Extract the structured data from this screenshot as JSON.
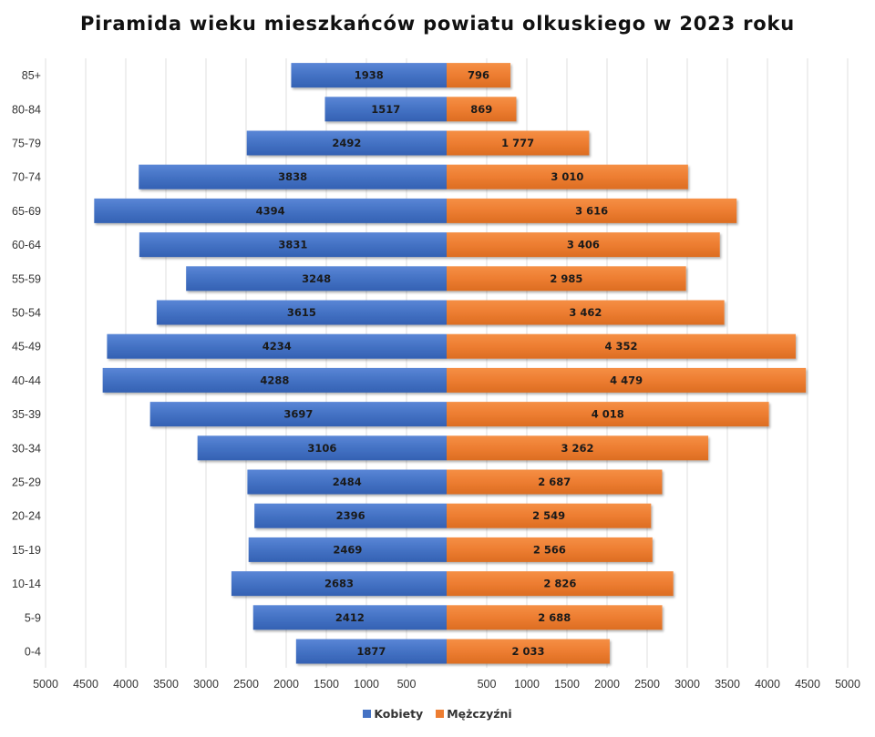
{
  "chart_data": {
    "type": "bar",
    "orientation": "horizontal",
    "layout": "population-pyramid",
    "title": "Piramida wieku mieszkańców powiatu olkuskiego w 2023 roku",
    "xlabel": "",
    "ylabel": "",
    "xlim": [
      -5000,
      5000
    ],
    "grid": true,
    "legend_position": "bottom",
    "categories": [
      "85+",
      "80-84",
      "75-79",
      "70-74",
      "65-69",
      "60-64",
      "55-59",
      "50-54",
      "45-49",
      "40-44",
      "35-39",
      "30-34",
      "25-29",
      "20-24",
      "15-19",
      "10-14",
      "5-9",
      "0-4"
    ],
    "x_tick_labels_left": [
      "5000",
      "4500",
      "4000",
      "3500",
      "3000",
      "2500",
      "2000",
      "1500",
      "1000",
      "500"
    ],
    "x_tick_labels_right": [
      "500",
      "1000",
      "1500",
      "2000",
      "2500",
      "3000",
      "3500",
      "4000",
      "4500",
      "5000"
    ],
    "series": [
      {
        "name": "Kobiety",
        "side": "left",
        "color": "#4472c4",
        "values": [
          1938,
          1517,
          2492,
          3838,
          4394,
          3831,
          3248,
          3615,
          4234,
          4288,
          3697,
          3106,
          2484,
          2396,
          2469,
          2683,
          2412,
          1877
        ],
        "labels": [
          "1938",
          "1517",
          "2492",
          "3838",
          "4394",
          "3831",
          "3248",
          "3615",
          "4234",
          "4288",
          "3697",
          "3106",
          "2484",
          "2396",
          "2469",
          "2683",
          "2412",
          "1877"
        ]
      },
      {
        "name": "Mężczyźni",
        "side": "right",
        "color": "#ed7d31",
        "values": [
          796,
          869,
          1777,
          3010,
          3616,
          3406,
          2985,
          3462,
          4352,
          4479,
          4018,
          3262,
          2687,
          2549,
          2566,
          2826,
          2688,
          2033
        ],
        "labels": [
          "796",
          "869",
          "1 777",
          "3 010",
          "3 616",
          "3 406",
          "2 985",
          "3 462",
          "4 352",
          "4 479",
          "4 018",
          "3 262",
          "2 687",
          "2 549",
          "2 566",
          "2 826",
          "2 688",
          "2 033"
        ]
      }
    ]
  }
}
